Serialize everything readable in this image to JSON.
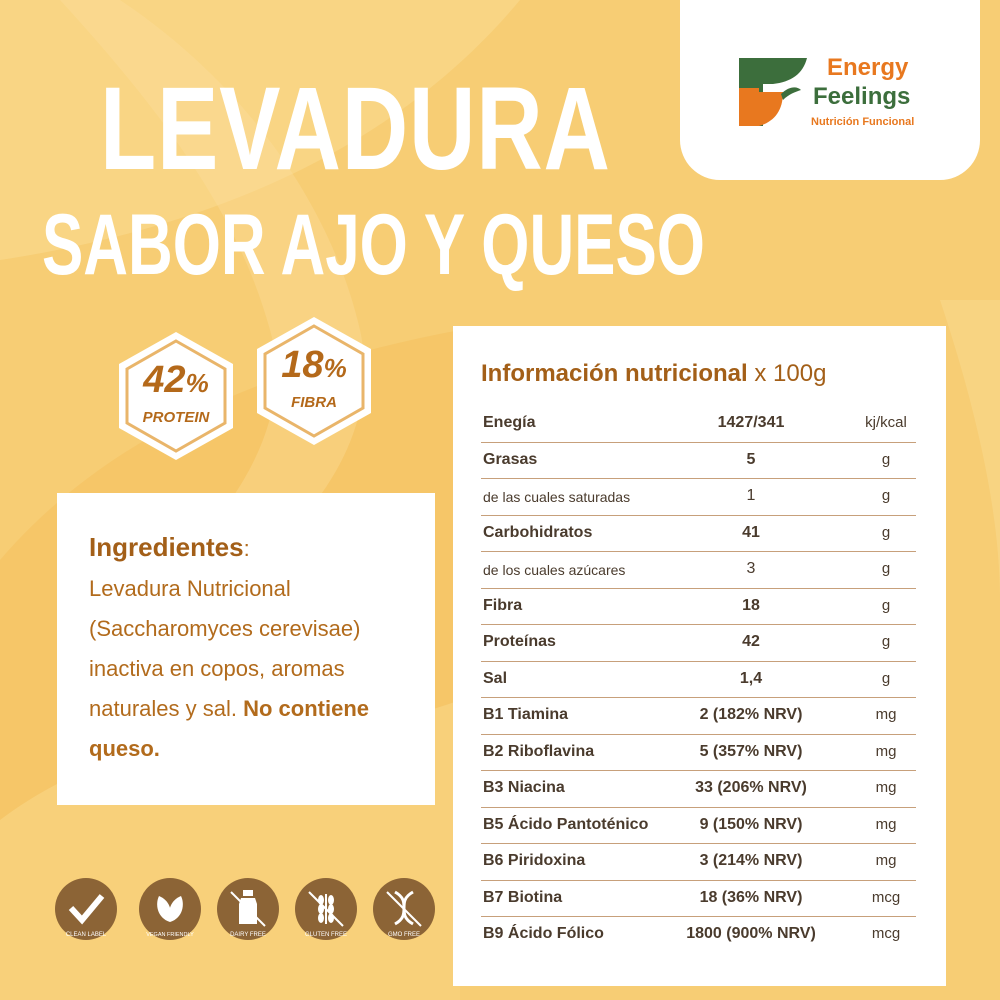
{
  "title": {
    "line1": "LEVADURA",
    "line2": "SABOR AJO Y QUESO"
  },
  "brand": {
    "name_line1": "Energy",
    "name_line2": "Feelings",
    "tagline": "Nutrición Funcional",
    "colors": {
      "orange": "#e8781f",
      "green": "#3c6e3c"
    }
  },
  "badges": [
    {
      "value": "42",
      "unit": "%",
      "label": "PROTEIN"
    },
    {
      "value": "18",
      "unit": "%",
      "label": "FIBRA"
    }
  ],
  "ingredients": {
    "heading": "Ingredientes",
    "colon": ":",
    "text": "Levadura Nutricional (Saccharomyces cerevisae) inactiva en copos, aromas naturales y sal.",
    "bold": "No contiene queso."
  },
  "nutrition": {
    "title_bold": "Información nutricional",
    "title_rest": " x 100g",
    "rows": [
      {
        "name": "Enegía",
        "value": "1427/341",
        "unit": "kj/kcal"
      },
      {
        "name": "Grasas",
        "value": "5",
        "unit": "g"
      },
      {
        "name": "de las cuales saturadas",
        "value": "1",
        "unit": "g"
      },
      {
        "name": "Carbohidratos",
        "value": "41",
        "unit": "g"
      },
      {
        "name": "de los cuales azúcares",
        "value": "3",
        "unit": "g"
      },
      {
        "name": "Fibra",
        "value": "18",
        "unit": "g"
      },
      {
        "name": "Proteínas",
        "value": "42",
        "unit": "g"
      },
      {
        "name": "Sal",
        "value": "1,4",
        "unit": "g"
      },
      {
        "name": "B1 Tiamina",
        "value": "2 (182% NRV)",
        "unit": "mg"
      },
      {
        "name": "B2 Riboflavina",
        "value": "5 (357% NRV)",
        "unit": "mg"
      },
      {
        "name": "B3 Niacina",
        "value": "33 (206% NRV)",
        "unit": "mg"
      },
      {
        "name": "B5 Ácido Pantoténico",
        "value": "9 (150% NRV)",
        "unit": "mg"
      },
      {
        "name": "B6 Piridoxina",
        "value": "3 (214% NRV)",
        "unit": "mg"
      },
      {
        "name": "B7 Biotina",
        "value": "18 (36% NRV)",
        "unit": "mcg"
      },
      {
        "name": "B9 Ácido Fólico",
        "value": "1800 (900% NRV)",
        "unit": "mcg"
      }
    ]
  },
  "icons": [
    {
      "icon": "checkmark-icon",
      "label": "CLEAN LABEL"
    },
    {
      "icon": "leaves-icon",
      "label": "VEGAN FRIENDLY"
    },
    {
      "icon": "milk-bottle-icon",
      "label": "DAIRY FREE"
    },
    {
      "icon": "wheat-icon",
      "label": "GLUTEN FREE"
    },
    {
      "icon": "dna-icon",
      "label": "GMO FREE"
    }
  ]
}
